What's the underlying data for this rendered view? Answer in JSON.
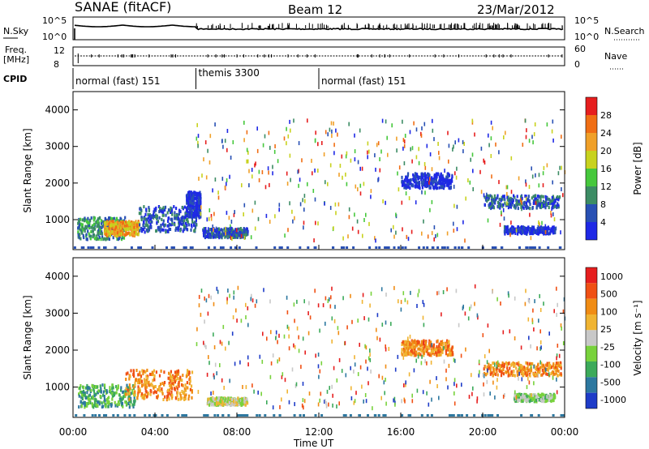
{
  "header": {
    "station": "SANAE (fitACF)",
    "beam": "Beam 12",
    "date": "23/Mar/2012"
  },
  "top_panels": {
    "nsky_label": "N.Sky",
    "nsky_ticks": [
      "10^5",
      "10^0"
    ],
    "nsearch_label": "N.Search",
    "nsearch_ticks": [
      "10^5",
      "10^0"
    ],
    "freq_label": "Freq.",
    "freq_unit": "[MHz]",
    "freq_ticks": [
      "12",
      "8"
    ],
    "nave_label": "Nave",
    "nave_ticks": [
      "60",
      "0"
    ],
    "cpid_label": "CPID"
  },
  "cpid_segments": [
    {
      "label": "normal (fast) 151",
      "start_h": 0,
      "end_h": 6
    },
    {
      "label": "themis 3300",
      "start_h": 6,
      "end_h": 12
    },
    {
      "label": "normal (fast) 151",
      "start_h": 12,
      "end_h": 24
    }
  ],
  "x_axis": {
    "label": "Time UT",
    "ticks": [
      "00:00",
      "04:00",
      "08:00",
      "12:00",
      "16:00",
      "20:00",
      "00:00"
    ],
    "range_h": [
      0,
      24
    ]
  },
  "chart_data": [
    {
      "type": "heatmap",
      "name": "power",
      "ylabel": "Slant Range [km]",
      "ylim": [
        180,
        4500
      ],
      "y_ticks": [
        1000,
        2000,
        3000,
        4000
      ],
      "colorbar_label": "Power [dB]",
      "colorbar_ticks": [
        "4",
        "8",
        "12",
        "16",
        "20",
        "24",
        "28"
      ],
      "colorbar_colors": [
        "#1e28e6",
        "#2850b4",
        "#3c8c64",
        "#46c83c",
        "#c8d21e",
        "#f0a028",
        "#f06e14",
        "#e61e1e"
      ],
      "clusters": [
        {
          "t": [
            0.2,
            2.5
          ],
          "r": [
            500,
            1100
          ],
          "level": 2
        },
        {
          "t": [
            1.5,
            3.2
          ],
          "r": [
            600,
            1000
          ],
          "level": 5
        },
        {
          "t": [
            3.2,
            6.0
          ],
          "r": [
            700,
            1400
          ],
          "level": 1
        },
        {
          "t": [
            5.5,
            6.2
          ],
          "r": [
            1100,
            1800
          ],
          "level": 0
        },
        {
          "t": [
            6.3,
            8.5
          ],
          "r": [
            550,
            800
          ],
          "level": 1
        },
        {
          "t": [
            16.0,
            18.5
          ],
          "r": [
            1900,
            2300
          ],
          "level": 0
        },
        {
          "t": [
            20.0,
            23.8
          ],
          "r": [
            1350,
            1700
          ],
          "level": 1
        },
        {
          "t": [
            21.0,
            23.5
          ],
          "r": [
            650,
            850
          ],
          "level": 0
        }
      ]
    },
    {
      "type": "heatmap",
      "name": "velocity",
      "ylabel": "Slant Range [km]",
      "ylim": [
        180,
        4500
      ],
      "y_ticks": [
        1000,
        2000,
        3000,
        4000
      ],
      "colorbar_label": "Velocity [m s⁻¹]",
      "colorbar_ticks": [
        "1000",
        "500",
        "100",
        "25",
        "-25",
        "-100",
        "-500",
        "-1000"
      ],
      "colorbar_colors": [
        "#1e3cc8",
        "#2d78a0",
        "#3caa5a",
        "#78d23c",
        "#c8c8c8",
        "#f0b432",
        "#f08c14",
        "#f05014",
        "#e61e1e"
      ],
      "clusters": [
        {
          "t": [
            0.2,
            3.0
          ],
          "r": [
            500,
            1100
          ],
          "level": 2
        },
        {
          "t": [
            2.5,
            5.8
          ],
          "r": [
            700,
            1500
          ],
          "level": 6
        },
        {
          "t": [
            6.5,
            8.5
          ],
          "r": [
            550,
            750
          ],
          "level": 4
        },
        {
          "t": [
            16.0,
            18.5
          ],
          "r": [
            1900,
            2300
          ],
          "level": 6
        },
        {
          "t": [
            20.0,
            23.8
          ],
          "r": [
            1350,
            1700
          ],
          "level": 6
        },
        {
          "t": [
            21.5,
            23.5
          ],
          "r": [
            650,
            850
          ],
          "level": 3
        }
      ]
    }
  ]
}
